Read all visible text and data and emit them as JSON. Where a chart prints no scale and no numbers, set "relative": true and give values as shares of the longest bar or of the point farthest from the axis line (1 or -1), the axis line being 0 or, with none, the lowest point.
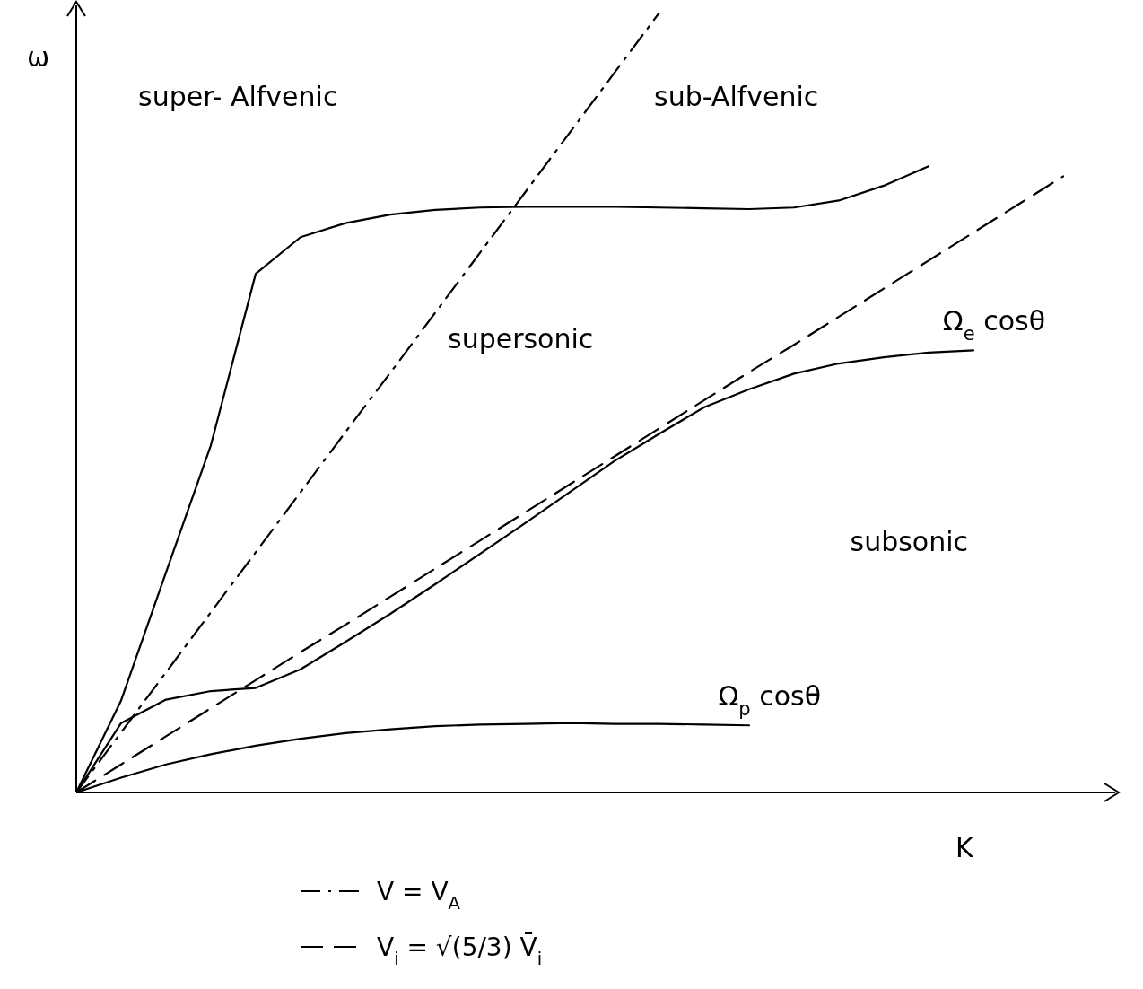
{
  "chart_data": {
    "type": "line",
    "relative": true,
    "xlabel": "K",
    "ylabel": "ω",
    "legend": "bottom",
    "marker": "none",
    "categories": [
      null,
      null,
      null,
      null,
      null,
      null,
      null,
      null,
      null,
      null,
      null,
      null,
      null,
      null,
      null,
      null,
      null,
      null,
      null,
      null,
      null,
      null,
      null,
      null
    ],
    "annotations": [
      "super- Alfvenic",
      "sub-Alfvenic",
      "supersonic",
      "subsonic"
    ],
    "series": [
      {
        "color": "#000000",
        "line_style": "solid",
        "values": [
          0,
          0.118,
          0.282,
          0.445,
          0.665,
          0.712,
          0.73,
          0.741,
          0.747,
          0.75,
          0.751,
          0.751,
          0.751,
          0.75,
          0.749,
          0.748,
          0.75,
          0.759,
          0.778,
          0.803,
          null,
          null,
          null,
          null
        ]
      },
      {
        "name": "V = V$_{A}$",
        "color": "#000000",
        "line_style": "dashdot",
        "values": [
          0,
          0.077,
          0.154,
          0.231,
          0.308,
          0.385,
          0.462,
          0.538,
          0.615,
          0.692,
          0.769,
          0.846,
          0.923,
          1,
          null,
          null,
          null,
          null,
          null,
          null,
          null,
          null,
          null,
          null
        ]
      },
      {
        "name": "V$_{i}$ = √(5/3) V̄$_{i}$",
        "color": "#000000",
        "line_style": "dashed",
        "values": [
          0,
          0.036,
          0.072,
          0.108,
          0.144,
          0.18,
          0.215,
          0.251,
          0.287,
          0.323,
          0.359,
          0.395,
          0.431,
          0.467,
          0.503,
          0.539,
          0.574,
          0.61,
          0.646,
          0.682,
          0.718,
          0.754,
          0.79,
          null
        ]
      },
      {
        "name": "Ω$_{e}$ cosθ",
        "color": "#000000",
        "line_style": "solid",
        "values": [
          0,
          0.089,
          0.119,
          0.13,
          0.134,
          0.158,
          0.193,
          0.229,
          0.267,
          0.306,
          0.345,
          0.385,
          0.425,
          0.46,
          0.494,
          0.517,
          0.537,
          0.55,
          0.558,
          0.564,
          0.567,
          null,
          null,
          null
        ]
      },
      {
        "name": "Ω$_{p}$ cosθ",
        "color": "#000000",
        "line_style": "solid",
        "values": [
          0,
          0.019,
          0.036,
          0.049,
          0.06,
          0.069,
          0.076,
          0.081,
          0.085,
          0.087,
          0.088,
          0.089,
          0.088,
          0.088,
          0.087,
          0.086,
          null,
          null,
          null,
          null,
          null,
          null,
          null,
          null
        ]
      }
    ]
  }
}
